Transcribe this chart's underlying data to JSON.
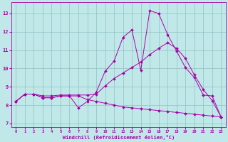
{
  "bg_color": "#c0e8e8",
  "grid_color": "#90c0c0",
  "line_color": "#aa00aa",
  "xlabel": "Windchill (Refroidissement éolien,°C)",
  "xlim": [
    -0.5,
    23.5
  ],
  "ylim": [
    6.8,
    13.6
  ],
  "yticks": [
    7,
    8,
    9,
    10,
    11,
    12,
    13
  ],
  "xticks": [
    0,
    1,
    2,
    3,
    4,
    5,
    6,
    7,
    8,
    9,
    10,
    11,
    12,
    13,
    14,
    15,
    16,
    17,
    18,
    19,
    20,
    21,
    22,
    23
  ],
  "line1_x": [
    0,
    1,
    2,
    3,
    4,
    5,
    6,
    7,
    8,
    9,
    10,
    11,
    12,
    13,
    14,
    15,
    16,
    17,
    18,
    19,
    20,
    21,
    22,
    23
  ],
  "line1_y": [
    8.2,
    8.6,
    8.6,
    8.4,
    8.4,
    8.5,
    8.5,
    7.85,
    8.2,
    8.7,
    9.85,
    10.4,
    11.7,
    12.1,
    9.9,
    13.15,
    13.0,
    11.85,
    10.95,
    10.05,
    9.5,
    8.55,
    8.5,
    7.35
  ],
  "line2_x": [
    0,
    1,
    2,
    3,
    4,
    5,
    6,
    7,
    8,
    9,
    10,
    11,
    12,
    13,
    14,
    15,
    16,
    17,
    18,
    19,
    20,
    21,
    22,
    23
  ],
  "line2_y": [
    8.2,
    8.6,
    8.6,
    8.5,
    8.5,
    8.55,
    8.55,
    8.55,
    8.55,
    8.6,
    9.05,
    9.45,
    9.75,
    10.05,
    10.35,
    10.75,
    11.1,
    11.4,
    11.1,
    10.55,
    9.65,
    8.85,
    8.25,
    7.35
  ],
  "line3_x": [
    0,
    1,
    2,
    3,
    4,
    5,
    6,
    7,
    8,
    9,
    10,
    11,
    12,
    13,
    14,
    15,
    16,
    17,
    18,
    19,
    20,
    21,
    22,
    23
  ],
  "line3_y": [
    8.2,
    8.6,
    8.6,
    8.4,
    8.4,
    8.5,
    8.5,
    8.5,
    8.3,
    8.2,
    8.1,
    8.0,
    7.9,
    7.85,
    7.8,
    7.75,
    7.7,
    7.65,
    7.6,
    7.55,
    7.5,
    7.45,
    7.4,
    7.35
  ]
}
